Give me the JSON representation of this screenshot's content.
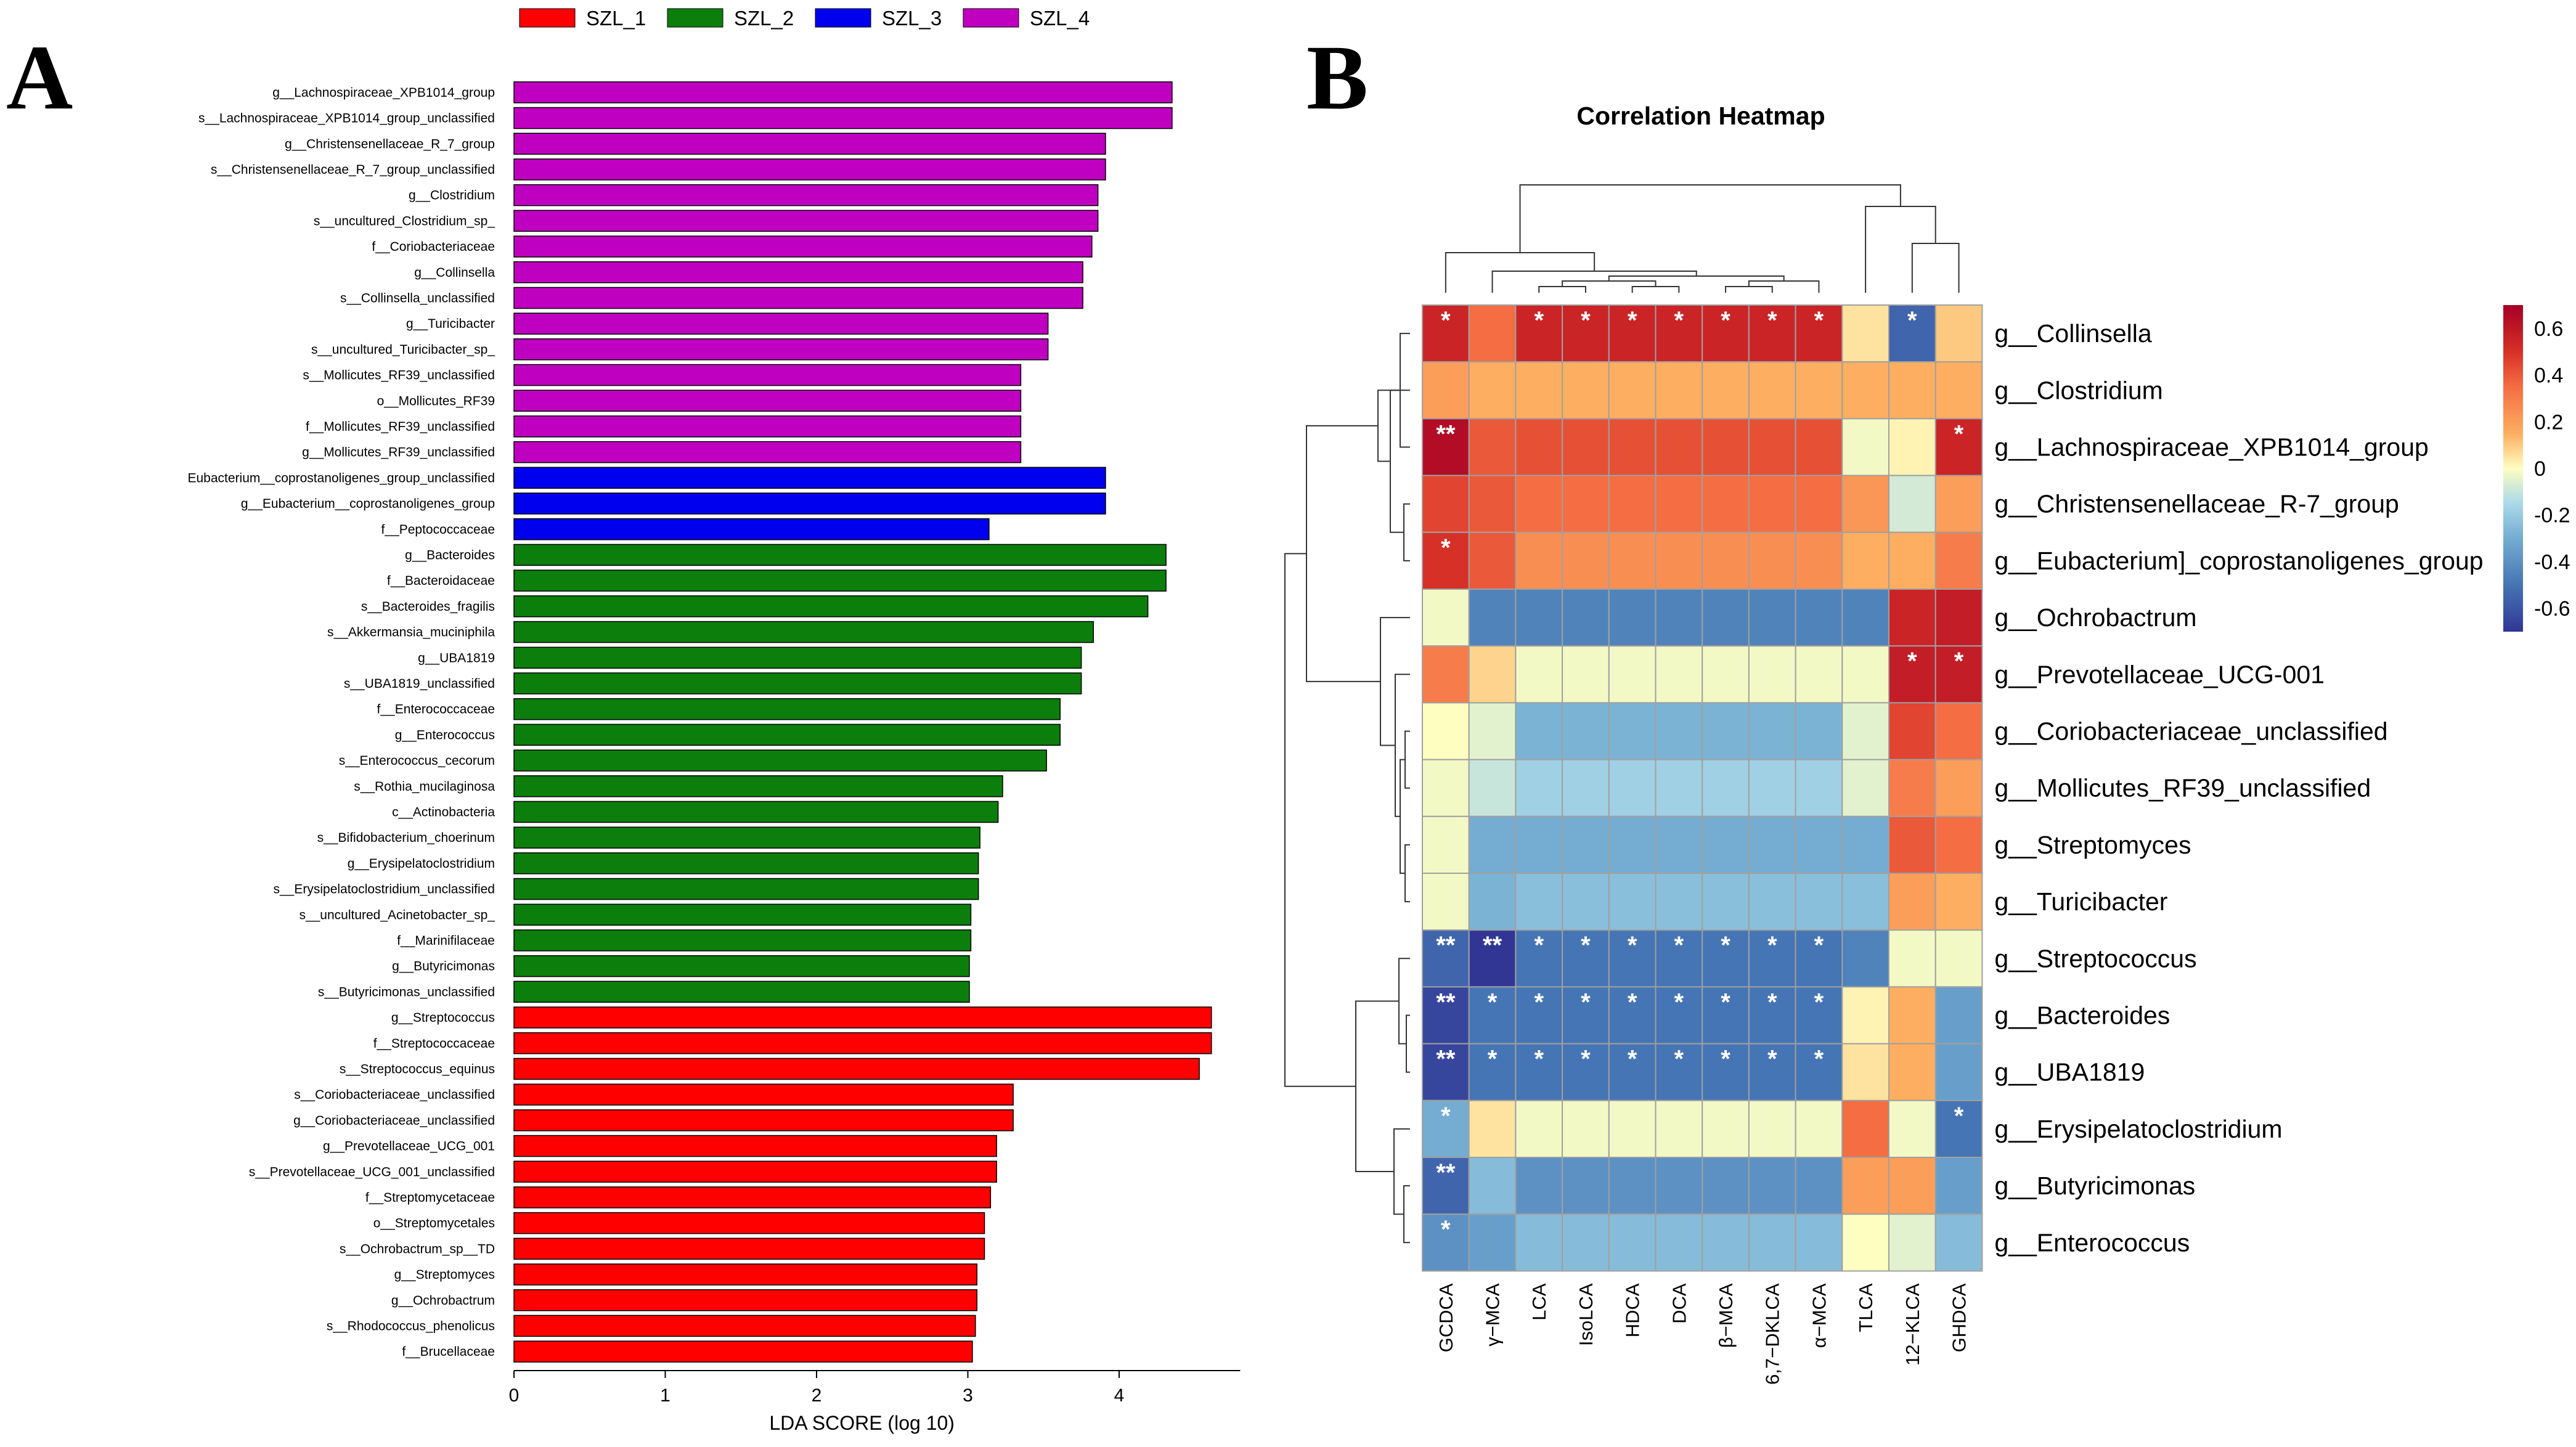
{
  "panel_labels": {
    "a": "A",
    "b": "B"
  },
  "chart_data": [
    {
      "type": "bar",
      "orientation": "horizontal",
      "title": "",
      "xlabel": "LDA SCORE (log 10)",
      "ylabel": "",
      "xlim": [
        0,
        4.8
      ],
      "xticks": [
        0,
        1,
        2,
        3,
        4
      ],
      "grid": false,
      "legend": [
        {
          "name": "SZL_1",
          "color": "#ff0000"
        },
        {
          "name": "SZL_2",
          "color": "#0c7e0c"
        },
        {
          "name": "SZL_3",
          "color": "#0000ee"
        },
        {
          "name": "SZL_4",
          "color": "#c000c0"
        }
      ],
      "bars": [
        {
          "label": "g__Lachnospiraceae_XPB1014_group",
          "value": 4.35,
          "group": "SZL_4"
        },
        {
          "label": "s__Lachnospiraceae_XPB1014_group_unclassified",
          "value": 4.35,
          "group": "SZL_4"
        },
        {
          "label": "g__Christensenellaceae_R_7_group",
          "value": 3.91,
          "group": "SZL_4"
        },
        {
          "label": "s__Christensenellaceae_R_7_group_unclassified",
          "value": 3.91,
          "group": "SZL_4"
        },
        {
          "label": "g__Clostridium",
          "value": 3.86,
          "group": "SZL_4"
        },
        {
          "label": "s__uncultured_Clostridium_sp_",
          "value": 3.86,
          "group": "SZL_4"
        },
        {
          "label": "f__Coriobacteriaceae",
          "value": 3.82,
          "group": "SZL_4"
        },
        {
          "label": "g__Collinsella",
          "value": 3.76,
          "group": "SZL_4"
        },
        {
          "label": "s__Collinsella_unclassified",
          "value": 3.76,
          "group": "SZL_4"
        },
        {
          "label": "g__Turicibacter",
          "value": 3.53,
          "group": "SZL_4"
        },
        {
          "label": "s__uncultured_Turicibacter_sp_",
          "value": 3.53,
          "group": "SZL_4"
        },
        {
          "label": "s__Mollicutes_RF39_unclassified",
          "value": 3.35,
          "group": "SZL_4"
        },
        {
          "label": "o__Mollicutes_RF39",
          "value": 3.35,
          "group": "SZL_4"
        },
        {
          "label": "f__Mollicutes_RF39_unclassified",
          "value": 3.35,
          "group": "SZL_4"
        },
        {
          "label": "g__Mollicutes_RF39_unclassified",
          "value": 3.35,
          "group": "SZL_4"
        },
        {
          "label": "Eubacterium__coprostanoligenes_group_unclassified",
          "value": 3.91,
          "group": "SZL_3"
        },
        {
          "label": "g__Eubacterium__coprostanoligenes_group",
          "value": 3.91,
          "group": "SZL_3"
        },
        {
          "label": "f__Peptococcaceae",
          "value": 3.14,
          "group": "SZL_3"
        },
        {
          "label": "g__Bacteroides",
          "value": 4.31,
          "group": "SZL_2"
        },
        {
          "label": "f__Bacteroidaceae",
          "value": 4.31,
          "group": "SZL_2"
        },
        {
          "label": "s__Bacteroides_fragilis",
          "value": 4.19,
          "group": "SZL_2"
        },
        {
          "label": "s__Akkermansia_muciniphila",
          "value": 3.83,
          "group": "SZL_2"
        },
        {
          "label": "g__UBA1819",
          "value": 3.75,
          "group": "SZL_2"
        },
        {
          "label": "s__UBA1819_unclassified",
          "value": 3.75,
          "group": "SZL_2"
        },
        {
          "label": "f__Enterococcaceae",
          "value": 3.61,
          "group": "SZL_2"
        },
        {
          "label": "g__Enterococcus",
          "value": 3.61,
          "group": "SZL_2"
        },
        {
          "label": "s__Enterococcus_cecorum",
          "value": 3.52,
          "group": "SZL_2"
        },
        {
          "label": "s__Rothia_mucilaginosa",
          "value": 3.23,
          "group": "SZL_2"
        },
        {
          "label": "c__Actinobacteria",
          "value": 3.2,
          "group": "SZL_2"
        },
        {
          "label": "s__Bifidobacterium_choerinum",
          "value": 3.08,
          "group": "SZL_2"
        },
        {
          "label": "g__Erysipelatoclostridium",
          "value": 3.07,
          "group": "SZL_2"
        },
        {
          "label": "s__Erysipelatoclostridium_unclassified",
          "value": 3.07,
          "group": "SZL_2"
        },
        {
          "label": "s__uncultured_Acinetobacter_sp_",
          "value": 3.02,
          "group": "SZL_2"
        },
        {
          "label": "f__Marinifilaceae",
          "value": 3.02,
          "group": "SZL_2"
        },
        {
          "label": "g__Butyricimonas",
          "value": 3.01,
          "group": "SZL_2"
        },
        {
          "label": "s__Butyricimonas_unclassified",
          "value": 3.01,
          "group": "SZL_2"
        },
        {
          "label": "g__Streptococcus",
          "value": 4.61,
          "group": "SZL_1"
        },
        {
          "label": "f__Streptococcaceae",
          "value": 4.61,
          "group": "SZL_1"
        },
        {
          "label": "s__Streptococcus_equinus",
          "value": 4.53,
          "group": "SZL_1"
        },
        {
          "label": "s__Coriobacteriaceae_unclassified",
          "value": 3.3,
          "group": "SZL_1"
        },
        {
          "label": "g__Coriobacteriaceae_unclassified",
          "value": 3.3,
          "group": "SZL_1"
        },
        {
          "label": "g__Prevotellaceae_UCG_001",
          "value": 3.19,
          "group": "SZL_1"
        },
        {
          "label": "s__Prevotellaceae_UCG_001_unclassified",
          "value": 3.19,
          "group": "SZL_1"
        },
        {
          "label": "f__Streptomycetaceae",
          "value": 3.15,
          "group": "SZL_1"
        },
        {
          "label": "o__Streptomycetales",
          "value": 3.11,
          "group": "SZL_1"
        },
        {
          "label": "s__Ochrobactrum_sp__TD",
          "value": 3.11,
          "group": "SZL_1"
        },
        {
          "label": "g__Streptomyces",
          "value": 3.06,
          "group": "SZL_1"
        },
        {
          "label": "g__Ochrobactrum",
          "value": 3.06,
          "group": "SZL_1"
        },
        {
          "label": "s__Rhodococcus_phenolicus",
          "value": 3.05,
          "group": "SZL_1"
        },
        {
          "label": "f__Brucellaceae",
          "value": 3.03,
          "group": "SZL_1"
        }
      ]
    },
    {
      "type": "heatmap",
      "title": "Correlation Heatmap",
      "columns": [
        "GCDCA",
        "γ−MCA",
        "LCA",
        "IsoLCA",
        "HDCA",
        "DCA",
        "β−MCA",
        "6,7−DKLCA",
        "α−MCA",
        "TLCA",
        "12−KLCA",
        "GHDCA"
      ],
      "rows": [
        "g__Collinsella",
        "g__Clostridium",
        "g__Lachnospiraceae_XPB1014_group",
        "g__Christensenellaceae_R-7_group",
        "g__Eubacterium]_coprostanoligenes_group",
        "g__Ochrobactrum",
        "g__Prevotellaceae_UCG-001",
        "g__Coriobacteriaceae_unclassified",
        "g__Mollicutes_RF39_unclassified",
        "g__Streptomyces",
        "g__Turicibacter",
        "g__Streptococcus",
        "g__Bacteroides",
        "g__UBA1819",
        "g__Erysipelatoclostridium",
        "g__Butyricimonas",
        "g__Enterococcus"
      ],
      "values": [
        [
          0.55,
          0.35,
          0.55,
          0.55,
          0.55,
          0.55,
          0.55,
          0.55,
          0.55,
          0.05,
          -0.55,
          0.1
        ],
        [
          0.2,
          0.15,
          0.15,
          0.15,
          0.15,
          0.15,
          0.15,
          0.15,
          0.15,
          0.15,
          0.15,
          0.15
        ],
        [
          0.65,
          0.4,
          0.42,
          0.42,
          0.42,
          0.42,
          0.42,
          0.42,
          0.42,
          -0.02,
          0.02,
          0.55
        ],
        [
          0.45,
          0.4,
          0.35,
          0.35,
          0.35,
          0.35,
          0.35,
          0.35,
          0.35,
          0.22,
          -0.08,
          0.2
        ],
        [
          0.5,
          0.4,
          0.25,
          0.25,
          0.25,
          0.25,
          0.25,
          0.25,
          0.25,
          0.15,
          0.15,
          0.3
        ],
        [
          -0.02,
          -0.45,
          -0.45,
          -0.45,
          -0.45,
          -0.45,
          -0.45,
          -0.45,
          -0.45,
          -0.45,
          0.55,
          0.58
        ],
        [
          0.3,
          0.08,
          -0.02,
          -0.02,
          -0.02,
          -0.02,
          -0.02,
          -0.02,
          -0.02,
          -0.02,
          0.58,
          0.58
        ],
        [
          0.0,
          -0.05,
          -0.28,
          -0.28,
          -0.28,
          -0.28,
          -0.28,
          -0.28,
          -0.28,
          -0.05,
          0.45,
          0.35
        ],
        [
          -0.02,
          -0.1,
          -0.18,
          -0.18,
          -0.18,
          -0.18,
          -0.18,
          -0.18,
          -0.18,
          -0.05,
          0.3,
          0.2
        ],
        [
          -0.02,
          -0.3,
          -0.3,
          -0.3,
          -0.3,
          -0.3,
          -0.3,
          -0.3,
          -0.3,
          -0.3,
          0.4,
          0.35
        ],
        [
          -0.02,
          -0.28,
          -0.24,
          -0.24,
          -0.24,
          -0.24,
          -0.24,
          -0.24,
          -0.24,
          -0.24,
          0.2,
          0.15
        ],
        [
          -0.55,
          -0.7,
          -0.5,
          -0.5,
          -0.5,
          -0.5,
          -0.5,
          -0.5,
          -0.5,
          -0.45,
          -0.02,
          -0.02
        ],
        [
          -0.65,
          -0.5,
          -0.5,
          -0.5,
          -0.5,
          -0.5,
          -0.5,
          -0.5,
          -0.5,
          0.02,
          0.15,
          -0.35
        ],
        [
          -0.65,
          -0.5,
          -0.5,
          -0.5,
          -0.5,
          -0.5,
          -0.5,
          -0.5,
          -0.5,
          0.05,
          0.15,
          -0.35
        ],
        [
          -0.3,
          0.05,
          -0.02,
          -0.02,
          -0.02,
          -0.02,
          -0.02,
          -0.02,
          -0.02,
          0.35,
          -0.02,
          -0.5
        ],
        [
          -0.55,
          -0.25,
          -0.4,
          -0.4,
          -0.4,
          -0.4,
          -0.4,
          -0.4,
          -0.4,
          0.2,
          0.2,
          -0.35
        ],
        [
          -0.4,
          -0.35,
          -0.25,
          -0.25,
          -0.25,
          -0.25,
          -0.25,
          -0.25,
          -0.25,
          0.0,
          -0.05,
          -0.25
        ]
      ],
      "significance": [
        [
          "*",
          "",
          "*",
          "*",
          "*",
          "*",
          "*",
          "*",
          "*",
          "",
          "*",
          ""
        ],
        [
          "",
          "",
          "",
          "",
          "",
          "",
          "",
          "",
          "",
          "",
          "",
          ""
        ],
        [
          "**",
          "",
          "",
          "",
          "",
          "",
          "",
          "",
          "",
          "",
          "",
          "*"
        ],
        [
          "",
          "",
          "",
          "",
          "",
          "",
          "",
          "",
          "",
          "",
          "",
          ""
        ],
        [
          "*",
          "",
          "",
          "",
          "",
          "",
          "",
          "",
          "",
          "",
          "",
          ""
        ],
        [
          "",
          "",
          "",
          "",
          "",
          "",
          "",
          "",
          "",
          "",
          "",
          ""
        ],
        [
          "",
          "",
          "",
          "",
          "",
          "",
          "",
          "",
          "",
          "",
          "*",
          "*"
        ],
        [
          "",
          "",
          "",
          "",
          "",
          "",
          "",
          "",
          "",
          "",
          "",
          ""
        ],
        [
          "",
          "",
          "",
          "",
          "",
          "",
          "",
          "",
          "",
          "",
          "",
          ""
        ],
        [
          "",
          "",
          "",
          "",
          "",
          "",
          "",
          "",
          "",
          "",
          "",
          ""
        ],
        [
          "",
          "",
          "",
          "",
          "",
          "",
          "",
          "",
          "",
          "",
          "",
          ""
        ],
        [
          "**",
          "**",
          "*",
          "*",
          "*",
          "*",
          "*",
          "*",
          "*",
          "",
          "",
          ""
        ],
        [
          "**",
          "*",
          "*",
          "*",
          "*",
          "*",
          "*",
          "*",
          "*",
          "",
          "",
          ""
        ],
        [
          "**",
          "*",
          "*",
          "*",
          "*",
          "*",
          "*",
          "*",
          "*",
          "",
          "",
          ""
        ],
        [
          "*",
          "",
          "",
          "",
          "",
          "",
          "",
          "",
          "",
          "",
          "",
          "*"
        ],
        [
          "**",
          "",
          "",
          "",
          "",
          "",
          "",
          "",
          "",
          "",
          "",
          ""
        ],
        [
          "*",
          "",
          "",
          "",
          "",
          "",
          "",
          "",
          "",
          "",
          "",
          ""
        ]
      ],
      "color_scale": {
        "min": -0.7,
        "max": 0.7,
        "ticks": [
          0.6,
          0.4,
          0.2,
          0,
          -0.2,
          -0.4,
          -0.6
        ],
        "tick_labels": [
          "0.6",
          "0.4",
          "0.2",
          "0",
          "-0.2",
          "-0.4",
          "-0.6"
        ],
        "low_color": "#313695",
        "mid_color": "#fefec0",
        "high_color": "#a50026"
      }
    }
  ]
}
